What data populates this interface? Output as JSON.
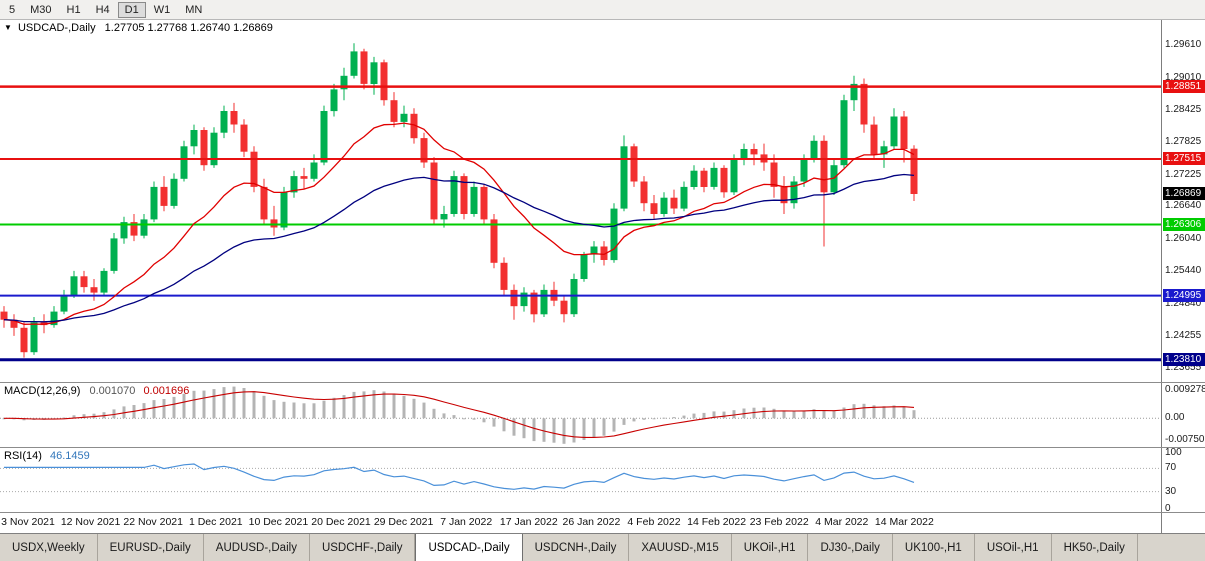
{
  "icons": {
    "dropdown": "▼"
  },
  "toolbar": {
    "timeframes": [
      "5",
      "M30",
      "H1",
      "H4",
      "D1",
      "W1",
      "MN"
    ],
    "selected": "D1"
  },
  "price_panel": {
    "symbol_label": "USDCAD-,Daily",
    "ohlc": "1.27705 1.27768 1.26740 1.26869",
    "axis_ticks": [
      "1.29610",
      "1.29010",
      "1.28425",
      "1.27825",
      "1.27225",
      "1.26640",
      "1.26040",
      "1.25440",
      "1.24840",
      "1.24255",
      "1.23655"
    ]
  },
  "macd_panel": {
    "label": "MACD(12,26,9)",
    "value_main": "0.001070",
    "value_signal": "0.001696",
    "axis": [
      "0.009278",
      "0.00",
      "-0.00750"
    ]
  },
  "rsi_panel": {
    "label": "RSI(14)",
    "value": "46.1459",
    "axis": [
      "100",
      "70",
      "30",
      "0"
    ]
  },
  "tabs": {
    "items": [
      "USDX,Weekly",
      "EURUSD-,Daily",
      "AUDUSD-,Daily",
      "USDCHF-,Daily",
      "USDCAD-,Daily",
      "USDCNH-,Daily",
      "XAUUSD-,M15",
      "UKOil-,H1",
      "DJ30-,Daily",
      "UK100-,H1",
      "USOil-,H1",
      "HK50-,Daily"
    ],
    "active": "USDCAD-,Daily"
  },
  "chart_data": {
    "type": "candlestick",
    "symbol": "USDCAD",
    "timeframe": "Daily",
    "price_range": {
      "max": 1.3008,
      "min": 1.234
    },
    "x_labels": [
      "3 Nov 2021",
      "12 Nov 2021",
      "22 Nov 2021",
      "1 Dec 2021",
      "10 Dec 2021",
      "20 Dec 2021",
      "29 Dec 2021",
      "7 Jan 2022",
      "17 Jan 2022",
      "26 Jan 2022",
      "4 Feb 2022",
      "14 Feb 2022",
      "23 Feb 2022",
      "4 Mar 2022",
      "14 Mar 2022"
    ],
    "candles": [
      [
        1.247,
        1.248,
        1.244,
        1.2455
      ],
      [
        1.2455,
        1.2465,
        1.2425,
        1.244
      ],
      [
        1.244,
        1.245,
        1.2385,
        1.2395
      ],
      [
        1.2395,
        1.246,
        1.239,
        1.245
      ],
      [
        1.245,
        1.2465,
        1.243,
        1.2445
      ],
      [
        1.2445,
        1.248,
        1.244,
        1.247
      ],
      [
        1.247,
        1.251,
        1.2465,
        1.25
      ],
      [
        1.25,
        1.2545,
        1.2495,
        1.2535
      ],
      [
        1.2535,
        1.2545,
        1.2505,
        1.2515
      ],
      [
        1.2515,
        1.253,
        1.249,
        1.2505
      ],
      [
        1.2505,
        1.255,
        1.25,
        1.2545
      ],
      [
        1.2545,
        1.2615,
        1.254,
        1.2605
      ],
      [
        1.2605,
        1.2645,
        1.2595,
        1.2635
      ],
      [
        1.2635,
        1.265,
        1.26,
        1.261
      ],
      [
        1.261,
        1.265,
        1.2605,
        1.264
      ],
      [
        1.264,
        1.271,
        1.2635,
        1.27
      ],
      [
        1.27,
        1.272,
        1.2655,
        1.2665
      ],
      [
        1.2665,
        1.2725,
        1.266,
        1.2715
      ],
      [
        1.2715,
        1.2785,
        1.271,
        1.2775
      ],
      [
        1.2775,
        1.2815,
        1.276,
        1.2805
      ],
      [
        1.2805,
        1.281,
        1.273,
        1.274
      ],
      [
        1.274,
        1.281,
        1.2735,
        1.28
      ],
      [
        1.28,
        1.285,
        1.279,
        1.284
      ],
      [
        1.284,
        1.2855,
        1.28,
        1.2815
      ],
      [
        1.2815,
        1.2825,
        1.2755,
        1.2765
      ],
      [
        1.2765,
        1.2775,
        1.269,
        1.27
      ],
      [
        1.27,
        1.2715,
        1.263,
        1.264
      ],
      [
        1.264,
        1.2665,
        1.261,
        1.2625
      ],
      [
        1.2625,
        1.27,
        1.262,
        1.269
      ],
      [
        1.269,
        1.273,
        1.268,
        1.272
      ],
      [
        1.272,
        1.2735,
        1.2695,
        1.2715
      ],
      [
        1.2715,
        1.276,
        1.271,
        1.2745
      ],
      [
        1.2745,
        1.285,
        1.274,
        1.284
      ],
      [
        1.284,
        1.289,
        1.283,
        1.288
      ],
      [
        1.288,
        1.292,
        1.286,
        1.2905
      ],
      [
        1.2905,
        1.2965,
        1.29,
        1.295
      ],
      [
        1.295,
        1.2955,
        1.288,
        1.289
      ],
      [
        1.289,
        1.294,
        1.287,
        1.293
      ],
      [
        1.293,
        1.2935,
        1.285,
        1.286
      ],
      [
        1.286,
        1.2875,
        1.281,
        1.282
      ],
      [
        1.282,
        1.285,
        1.281,
        1.2835
      ],
      [
        1.2835,
        1.2845,
        1.278,
        1.279
      ],
      [
        1.279,
        1.28,
        1.2735,
        1.2745
      ],
      [
        1.2745,
        1.2755,
        1.263,
        1.264
      ],
      [
        1.264,
        1.2665,
        1.2625,
        1.265
      ],
      [
        1.265,
        1.273,
        1.2645,
        1.272
      ],
      [
        1.272,
        1.2725,
        1.264,
        1.265
      ],
      [
        1.265,
        1.271,
        1.2645,
        1.27
      ],
      [
        1.27,
        1.2705,
        1.263,
        1.264
      ],
      [
        1.264,
        1.265,
        1.255,
        1.256
      ],
      [
        1.256,
        1.257,
        1.25,
        1.251
      ],
      [
        1.251,
        1.252,
        1.2455,
        1.248
      ],
      [
        1.248,
        1.2515,
        1.247,
        1.2505
      ],
      [
        1.2505,
        1.251,
        1.245,
        1.2465
      ],
      [
        1.2465,
        1.252,
        1.246,
        1.251
      ],
      [
        1.251,
        1.2525,
        1.248,
        1.249
      ],
      [
        1.249,
        1.25,
        1.245,
        1.2465
      ],
      [
        1.2465,
        1.254,
        1.246,
        1.253
      ],
      [
        1.253,
        1.258,
        1.2525,
        1.2575
      ],
      [
        1.2575,
        1.26,
        1.256,
        1.259
      ],
      [
        1.259,
        1.26,
        1.2555,
        1.2565
      ],
      [
        1.2565,
        1.267,
        1.256,
        1.266
      ],
      [
        1.266,
        1.2795,
        1.2655,
        1.2775
      ],
      [
        1.2775,
        1.278,
        1.27,
        1.271
      ],
      [
        1.271,
        1.272,
        1.2655,
        1.267
      ],
      [
        1.267,
        1.2685,
        1.264,
        1.265
      ],
      [
        1.265,
        1.269,
        1.2645,
        1.268
      ],
      [
        1.268,
        1.2695,
        1.265,
        1.266
      ],
      [
        1.266,
        1.271,
        1.2655,
        1.27
      ],
      [
        1.27,
        1.274,
        1.2695,
        1.273
      ],
      [
        1.273,
        1.2735,
        1.269,
        1.27
      ],
      [
        1.27,
        1.2745,
        1.2695,
        1.2735
      ],
      [
        1.2735,
        1.274,
        1.268,
        1.269
      ],
      [
        1.269,
        1.276,
        1.2685,
        1.275
      ],
      [
        1.275,
        1.278,
        1.274,
        1.277
      ],
      [
        1.277,
        1.278,
        1.274,
        1.276
      ],
      [
        1.276,
        1.278,
        1.273,
        1.2745
      ],
      [
        1.2745,
        1.276,
        1.268,
        1.27
      ],
      [
        1.27,
        1.272,
        1.265,
        1.267
      ],
      [
        1.267,
        1.272,
        1.266,
        1.271
      ],
      [
        1.271,
        1.276,
        1.27,
        1.275
      ],
      [
        1.275,
        1.2795,
        1.2745,
        1.2785
      ],
      [
        1.2785,
        1.2795,
        1.259,
        1.269
      ],
      [
        1.269,
        1.275,
        1.2685,
        1.274
      ],
      [
        1.274,
        1.287,
        1.2735,
        1.286
      ],
      [
        1.286,
        1.2905,
        1.284,
        1.289
      ],
      [
        1.289,
        1.29,
        1.28,
        1.2815
      ],
      [
        1.2815,
        1.283,
        1.275,
        1.276
      ],
      [
        1.276,
        1.2785,
        1.2735,
        1.2775
      ],
      [
        1.2775,
        1.2845,
        1.277,
        1.283
      ],
      [
        1.283,
        1.284,
        1.2745,
        1.277
      ],
      [
        1.27705,
        1.27768,
        1.2674,
        1.26869
      ]
    ],
    "levels": [
      {
        "value": 1.28851,
        "label": "1.28851",
        "color": "#e81010",
        "width": 2.5
      },
      {
        "value": 1.27515,
        "label": "1.27515",
        "color": "#e81010",
        "width": 2
      },
      {
        "value": 1.26306,
        "label": "1.26306",
        "color": "#00cc00",
        "width": 2
      },
      {
        "value": 1.24995,
        "label": "1.24995",
        "color": "#1a1acd",
        "width": 2
      },
      {
        "value": 1.2381,
        "label": "1.23810",
        "color": "#00008b",
        "width": 3
      }
    ],
    "bid": {
      "value": 1.26869,
      "label": "1.26869",
      "color": "#000000"
    },
    "moving_averages": [
      {
        "period": 16,
        "color": "#e00000"
      },
      {
        "period": 42,
        "color": "#00007f"
      }
    ],
    "macd": {
      "fast": 12,
      "slow": 26,
      "signal": 9,
      "hist_color": "#b4b4b4",
      "signal_color": "#c80000"
    },
    "rsi": {
      "period": 14,
      "color": "#4a90d9",
      "levels": [
        70,
        30
      ]
    },
    "colors": {
      "bull": "#00b050",
      "bear": "#f23030"
    }
  }
}
